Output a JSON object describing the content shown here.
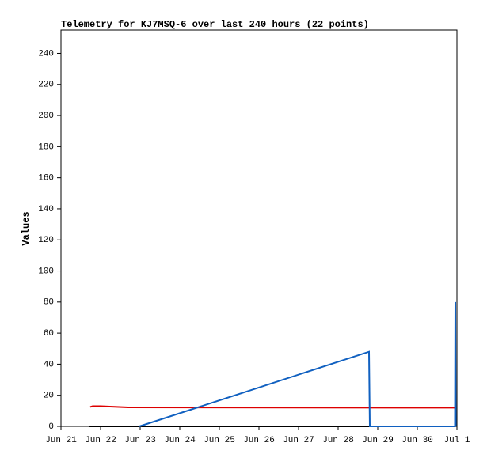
{
  "chart_data": {
    "type": "line",
    "title": "Telemetry for KJ7MSQ-6 over last 240 hours (22 points)",
    "y_label": "Values",
    "xlim": [
      0,
      10
    ],
    "xticks": [
      {
        "value": 0,
        "label": "Jun 21"
      },
      {
        "value": 1,
        "label": "Jun 22"
      },
      {
        "value": 2,
        "label": "Jun 23"
      },
      {
        "value": 3,
        "label": "Jun 24"
      },
      {
        "value": 4,
        "label": "Jun 25"
      },
      {
        "value": 5,
        "label": "Jun 26"
      },
      {
        "value": 6,
        "label": "Jun 27"
      },
      {
        "value": 7,
        "label": "Jun 28"
      },
      {
        "value": 8,
        "label": "Jun 29"
      },
      {
        "value": 9,
        "label": "Jun 30"
      },
      {
        "value": 10,
        "label": "Jul 1"
      }
    ],
    "ylim": [
      0,
      255
    ],
    "yticks": [
      0,
      20,
      40,
      60,
      80,
      100,
      120,
      140,
      160,
      180,
      200,
      220,
      240
    ],
    "grid": false,
    "series": [
      {
        "color": "#000000",
        "x": [
          0.7,
          9.96
        ],
        "values": [
          0,
          0
        ]
      },
      {
        "color": "#dd0000",
        "x": [
          0.74,
          0.8,
          1.0,
          1.7,
          9.95,
          9.96
        ],
        "values": [
          12.5,
          13,
          13,
          12.2,
          12,
          11
        ]
      },
      {
        "color": "#1060c0",
        "x": [
          1.98,
          7.78,
          7.8,
          9.95,
          9.96,
          9.97
        ],
        "values": [
          0,
          48,
          0,
          0,
          80,
          0
        ]
      }
    ]
  }
}
